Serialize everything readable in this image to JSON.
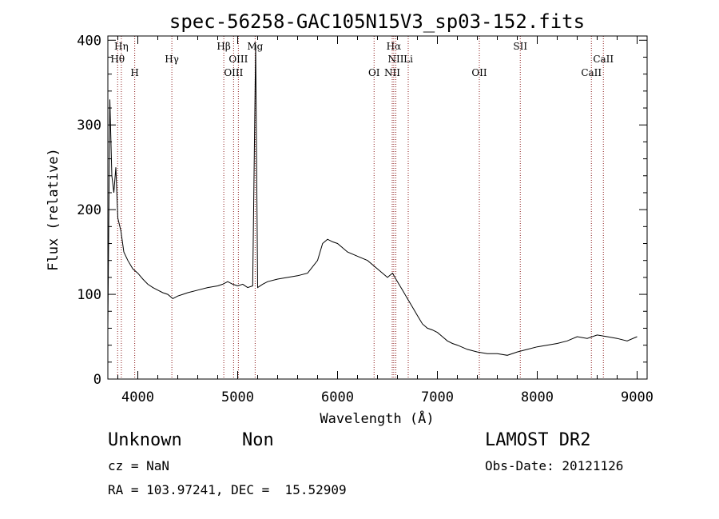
{
  "chart_data": {
    "type": "line",
    "title": "spec-56258-GAC105N15V3_sp03-152.fits",
    "xlabel": "Wavelength (Å)",
    "ylabel": "Flux (relative)",
    "xlim": [
      3700,
      9100
    ],
    "ylim": [
      0,
      405
    ],
    "xticks": [
      4000,
      5000,
      6000,
      7000,
      8000,
      9000
    ],
    "yticks": [
      0,
      100,
      200,
      300,
      400
    ],
    "grid": false,
    "line_color": "#000000",
    "marker_color": "#8b1a1a",
    "series": [
      {
        "x": [
          3700,
          3720,
          3740,
          3760,
          3780,
          3800,
          3830,
          3860,
          3900,
          3950,
          4000,
          4050,
          4100,
          4150,
          4200,
          4250,
          4300,
          4350,
          4400,
          4450,
          4500,
          4600,
          4700,
          4800,
          4850,
          4900,
          4950,
          5000,
          5050,
          5100,
          5150,
          5180,
          5200,
          5250,
          5300,
          5400,
          5500,
          5600,
          5700,
          5800,
          5850,
          5900,
          5950,
          6000,
          6100,
          6200,
          6300,
          6400,
          6500,
          6550,
          6600,
          6650,
          6700,
          6750,
          6800,
          6850,
          6900,
          6950,
          7000,
          7050,
          7100,
          7150,
          7200,
          7300,
          7400,
          7500,
          7600,
          7700,
          7800,
          7900,
          8000,
          8100,
          8200,
          8300,
          8400,
          8500,
          8600,
          8700,
          8800,
          8900,
          9000
        ],
        "y": [
          60,
          330,
          240,
          220,
          250,
          190,
          175,
          150,
          140,
          130,
          125,
          118,
          112,
          108,
          105,
          102,
          100,
          95,
          98,
          100,
          102,
          105,
          108,
          110,
          112,
          115,
          112,
          110,
          112,
          108,
          110,
          395,
          108,
          112,
          115,
          118,
          120,
          122,
          125,
          140,
          160,
          165,
          162,
          160,
          150,
          145,
          140,
          130,
          120,
          125,
          115,
          105,
          95,
          85,
          75,
          65,
          60,
          58,
          55,
          50,
          45,
          42,
          40,
          35,
          32,
          30,
          30,
          28,
          32,
          35,
          38,
          40,
          42,
          45,
          50,
          48,
          52,
          50,
          48,
          45,
          50
        ]
      }
    ],
    "line_markers": [
      {
        "label": "Hη",
        "x": 3835,
        "row": 0
      },
      {
        "label": "Hθ",
        "x": 3798,
        "row": 1
      },
      {
        "label": "H",
        "x": 3969,
        "row": 2
      },
      {
        "label": "Hγ",
        "x": 4341,
        "row": 1
      },
      {
        "label": "Hβ",
        "x": 4861,
        "row": 0
      },
      {
        "label": "OIII",
        "x": 5007,
        "row": 1
      },
      {
        "label": "OIII",
        "x": 4959,
        "row": 2
      },
      {
        "label": "Mg",
        "x": 5175,
        "row": 0
      },
      {
        "label": "Hα",
        "x": 6563,
        "row": 0
      },
      {
        "label": "NII",
        "x": 6584,
        "row": 1
      },
      {
        "label": "Li",
        "x": 6708,
        "row": 1
      },
      {
        "label": "OI",
        "x": 6366,
        "row": 2
      },
      {
        "label": "NII",
        "x": 6548,
        "row": 2
      },
      {
        "label": "OII",
        "x": 7420,
        "row": 2
      },
      {
        "label": "SII",
        "x": 7830,
        "row": 0
      },
      {
        "label": "CaII",
        "x": 8662,
        "row": 1
      },
      {
        "label": "CaII",
        "x": 8542,
        "row": 2
      }
    ]
  },
  "info": {
    "object_class": "Unknown",
    "object_subclass": "Non",
    "survey": "LAMOST DR2",
    "cz": "cz = NaN",
    "obs_date": "Obs-Date: 20121126",
    "coords": "RA = 103.97241, DEC =  15.52909"
  }
}
